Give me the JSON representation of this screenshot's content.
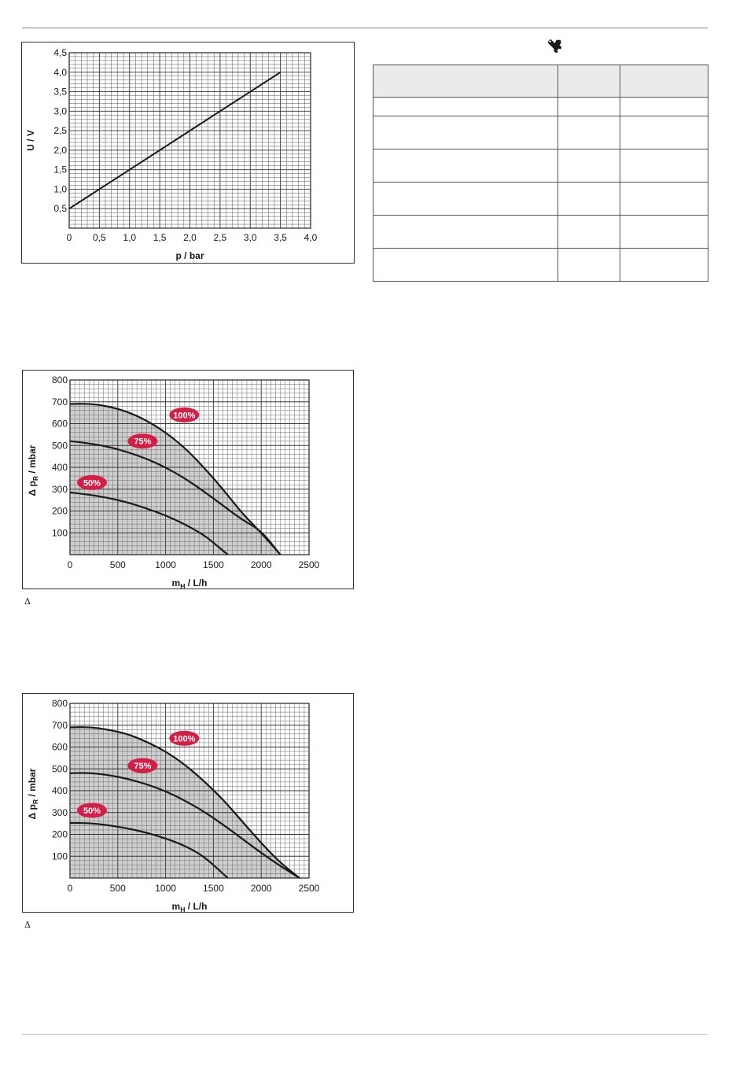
{
  "page": {
    "tool_icon": "wrench-screwdriver-icon",
    "caption_delta_1": "Δ",
    "caption_delta_2": "Δ"
  },
  "table": {
    "header": [
      "",
      "",
      ""
    ],
    "rows": [
      [
        "",
        "",
        ""
      ],
      [
        "",
        "",
        ""
      ],
      [
        "",
        "",
        ""
      ],
      [
        "",
        "",
        ""
      ],
      [
        "",
        "",
        ""
      ],
      [
        "",
        "",
        ""
      ]
    ]
  },
  "chart_data": [
    {
      "type": "line",
      "title": "",
      "xlabel": "p / bar",
      "ylabel": "U / V",
      "xlim": [
        0,
        4.0
      ],
      "ylim": [
        0,
        4.5
      ],
      "x_ticks": [
        "0",
        "0,5",
        "1,0",
        "1,5",
        "2,0",
        "2,5",
        "3,0",
        "3,5",
        "4,0"
      ],
      "y_ticks": [
        "0,5",
        "1,0",
        "1,5",
        "2,0",
        "2,5",
        "3,0",
        "3,5",
        "4,0",
        "4,5"
      ],
      "grid": true,
      "series": [
        {
          "x": [
            0,
            3.5
          ],
          "y": [
            0.5,
            4.0
          ]
        }
      ]
    },
    {
      "type": "area",
      "title": "",
      "xlabel": "mH / L/h",
      "ylabel": "Δ pR / mbar",
      "xlim": [
        0,
        2500
      ],
      "ylim": [
        0,
        800
      ],
      "x_ticks": [
        "0",
        "500",
        "1000",
        "1500",
        "2000",
        "2500"
      ],
      "y_ticks": [
        "100",
        "200",
        "300",
        "400",
        "500",
        "600",
        "700",
        "800"
      ],
      "grid": true,
      "series": [
        {
          "name": "100%",
          "x": [
            0,
            200,
            400,
            600,
            800,
            1000,
            1200,
            1400,
            1600,
            1800,
            2000,
            2200
          ],
          "y": [
            690,
            692,
            680,
            655,
            615,
            560,
            490,
            400,
            300,
            190,
            100,
            0
          ]
        },
        {
          "name": "75%",
          "x": [
            0,
            200,
            400,
            600,
            800,
            1000,
            1200,
            1400,
            1600,
            1800,
            2000,
            2200
          ],
          "y": [
            520,
            510,
            495,
            470,
            440,
            400,
            350,
            290,
            225,
            160,
            110,
            0
          ]
        },
        {
          "name": "50%",
          "x": [
            0,
            200,
            400,
            600,
            800,
            1000,
            1200,
            1400,
            1500,
            1650
          ],
          "y": [
            285,
            275,
            260,
            240,
            212,
            180,
            140,
            90,
            55,
            0
          ]
        }
      ]
    },
    {
      "type": "area",
      "title": "",
      "xlabel": "mH / L/h",
      "ylabel": "Δ pR / mbar",
      "xlim": [
        0,
        2500
      ],
      "ylim": [
        0,
        800
      ],
      "x_ticks": [
        "0",
        "500",
        "1000",
        "1500",
        "2000",
        "2500"
      ],
      "y_ticks": [
        "100",
        "200",
        "300",
        "400",
        "500",
        "600",
        "700",
        "800"
      ],
      "grid": true,
      "series": [
        {
          "name": "100%",
          "x": [
            0,
            200,
            400,
            600,
            800,
            1000,
            1200,
            1400,
            1600,
            1800,
            2000,
            2200,
            2400
          ],
          "y": [
            690,
            692,
            680,
            660,
            625,
            580,
            520,
            445,
            360,
            260,
            160,
            70,
            0
          ]
        },
        {
          "name": "75%",
          "x": [
            0,
            200,
            400,
            600,
            800,
            1000,
            1200,
            1400,
            1600,
            1800,
            2000,
            2200,
            2400
          ],
          "y": [
            480,
            482,
            472,
            455,
            430,
            398,
            355,
            305,
            245,
            180,
            115,
            55,
            0
          ]
        },
        {
          "name": "50%",
          "x": [
            0,
            200,
            400,
            600,
            800,
            1000,
            1200,
            1400,
            1650
          ],
          "y": [
            252,
            252,
            242,
            228,
            208,
            182,
            148,
            100,
            0
          ]
        }
      ]
    }
  ]
}
